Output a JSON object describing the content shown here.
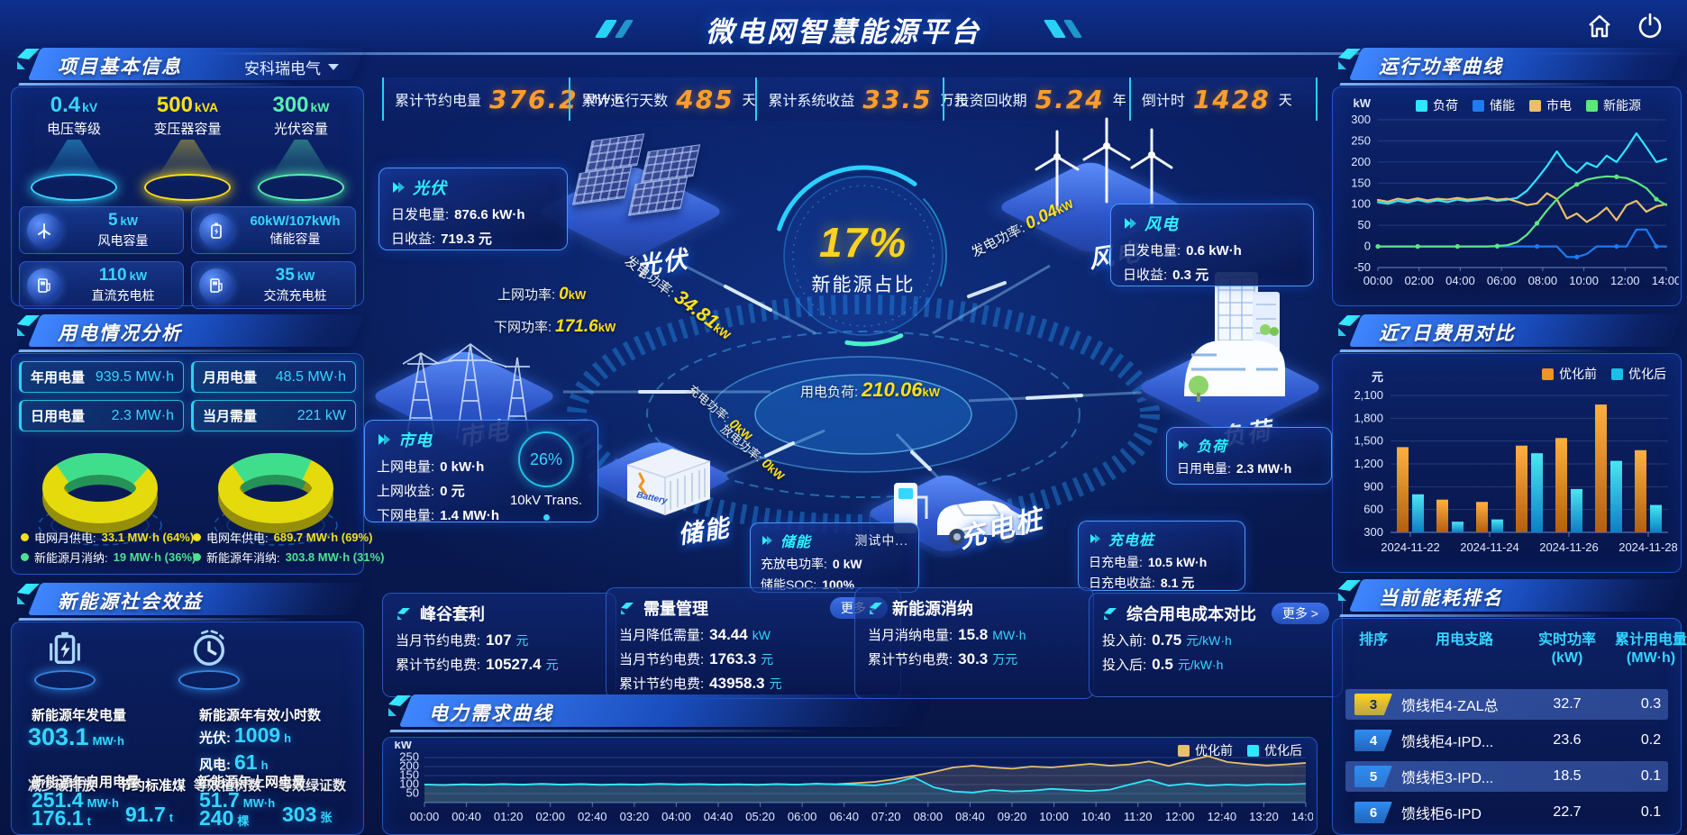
{
  "header": {
    "title": "微电网智慧能源平台"
  },
  "kpi": [
    {
      "label": "累计节约电量",
      "value": "376.2",
      "unit": "MW·h"
    },
    {
      "label": "累计运行天数",
      "value": "485",
      "unit": "天"
    },
    {
      "label": "累计系统收益",
      "value": "33.5",
      "unit": "万元"
    },
    {
      "label": "投资回收期",
      "value": "5.24",
      "unit": "年"
    },
    {
      "label": "倒计时",
      "value": "1428",
      "unit": "天"
    }
  ],
  "project": {
    "title": "项目基本信息",
    "company": "安科瑞电气",
    "spotlights": [
      {
        "value": "0.4",
        "unit": "kV",
        "label": "电压等级",
        "color": "#35d6ff"
      },
      {
        "value": "500",
        "unit": "kVA",
        "label": "变压器容量",
        "color": "#ffe01a"
      },
      {
        "value": "300",
        "unit": "kW",
        "label": "光伏容量",
        "color": "#57f0b0"
      }
    ],
    "cards": [
      {
        "value": "5",
        "unit": "kW",
        "label": "风电容量",
        "icon": "wind-turbine-icon"
      },
      {
        "value": "60kW/107kWh",
        "unit": "",
        "label": "储能容量",
        "icon": "battery-icon"
      },
      {
        "value": "110",
        "unit": "kW",
        "label": "直流充电桩",
        "icon": "dc-charger-icon"
      },
      {
        "value": "35",
        "unit": "kW",
        "label": "交流充电桩",
        "icon": "ac-charger-icon"
      }
    ]
  },
  "usage": {
    "title": "用电情况分析",
    "stats": [
      {
        "label": "年用电量",
        "value": "939.5",
        "unit": "MW·h"
      },
      {
        "label": "月用电量",
        "value": "48.5",
        "unit": "MW·h"
      },
      {
        "label": "日用电量",
        "value": "2.3",
        "unit": "MW·h"
      },
      {
        "label": "当月需量",
        "value": "221",
        "unit": "kW"
      }
    ],
    "donut_month": {
      "grid_pct": 64,
      "legend": [
        {
          "label": "电网月供电:",
          "value": "33.1 MW·h (64%)",
          "color": "#f0e01e"
        },
        {
          "label": "新能源月消纳:",
          "value": "19 MW·h (36%)",
          "color": "#4be38f"
        }
      ]
    },
    "donut_year": {
      "grid_pct": 69,
      "legend": [
        {
          "label": "电网年供电:",
          "value": "689.7 MW·h (69%)",
          "color": "#f0e01e"
        },
        {
          "label": "新能源年消纳:",
          "value": "303.8 MW·h (31%)",
          "color": "#4be38f"
        }
      ]
    }
  },
  "benefit": {
    "title": "新能源社会效益",
    "gen": {
      "label": "新能源年发电量",
      "value": "303.1",
      "unit": "MW·h"
    },
    "hours": {
      "label": "新能源年有效小时数",
      "pv_label": "光伏:",
      "pv": "1009",
      "pv_unit": "h",
      "wind_label": "风电:",
      "wind": "61",
      "wind_unit": "h"
    },
    "self_use": {
      "label": "新能源年自用电量",
      "value": "251.4",
      "unit": "MW·h"
    },
    "co2": {
      "label": "减少碳排放",
      "value": "176.1",
      "unit": "t"
    },
    "coal": {
      "label": "节约标准煤",
      "value": "91.7",
      "unit": "t"
    },
    "to_grid": {
      "label": "新能源年上网电量",
      "value": "51.7",
      "unit": "MW·h"
    },
    "trees": {
      "label": "等效植树数",
      "value": "240",
      "unit": "棵"
    },
    "certs": {
      "label": "等效绿证数",
      "value": "303",
      "unit": "张"
    }
  },
  "scene": {
    "gauge": {
      "value": "17%",
      "label": "新能源占比"
    },
    "transformer": {
      "pct": "26%",
      "label": "10kV Trans."
    },
    "nodes": {
      "solar": "光伏",
      "grid": "市电",
      "wind": "风电",
      "load": "负荷",
      "storage": "储能",
      "charger": "充电桩"
    },
    "solar_box": {
      "title": "光伏",
      "rows": [
        {
          "label": "日发电量:",
          "value": "876.6 kW·h"
        },
        {
          "label": "日收益:",
          "value": "719.3 元"
        }
      ]
    },
    "wind_box": {
      "title": "风电",
      "rows": [
        {
          "label": "日发电量:",
          "value": "0.6 kW·h"
        },
        {
          "label": "日收益:",
          "value": "0.3 元"
        }
      ]
    },
    "grid_box": {
      "title": "市电",
      "rows": [
        {
          "label": "上网电量:",
          "value": "0 kW·h"
        },
        {
          "label": "上网收益:",
          "value": "0 元"
        },
        {
          "label": "下网电量:",
          "value": "1.4 MW·h"
        }
      ]
    },
    "storage_box": {
      "title": "储能",
      "marquee": "测试中...",
      "rows": [
        {
          "label": "充放电功率:",
          "value": "0 kW"
        },
        {
          "label": "储能SOC:",
          "value": "100%"
        }
      ]
    },
    "load_box": {
      "title": "负荷",
      "rows": [
        {
          "label": "日用电量:",
          "value": "2.3 MW·h"
        }
      ]
    },
    "charger_box": {
      "title": "充电桩",
      "rows": [
        {
          "label": "日充电量:",
          "value": "10.5 kW·h"
        },
        {
          "label": "日充电收益:",
          "value": "8.1 元"
        }
      ]
    },
    "flows": {
      "pv_gen": {
        "label": "发电功率:",
        "value": "34.81",
        "unit": "kW"
      },
      "to_grid": {
        "label": "上网功率:",
        "value": "0",
        "unit": "kW"
      },
      "from_grid": {
        "label": "下网功率:",
        "value": "171.6",
        "unit": "kW"
      },
      "wind_gen": {
        "label": "发电功率:",
        "value": "0.04",
        "unit": "kW"
      },
      "load": {
        "label": "用电负荷:",
        "value": "210.06",
        "unit": "kW"
      },
      "charge": {
        "label": "充电功率:",
        "value": "0",
        "unit": "kW"
      },
      "discharge": {
        "label": "放电功率:",
        "value": "0",
        "unit": "kW"
      }
    }
  },
  "mid_cards": [
    {
      "title": "峰谷套利",
      "more": null,
      "rows": [
        {
          "label": "当月节约电费:",
          "value": "107",
          "unit": "元"
        },
        {
          "label": "累计节约电费:",
          "value": "10527.4",
          "unit": "元"
        }
      ]
    },
    {
      "title": "需量管理",
      "more": "更多 >",
      "rows": [
        {
          "label": "当月降低需量:",
          "value": "34.44",
          "unit": "kW"
        },
        {
          "label": "当月节约电费:",
          "value": "1763.3",
          "unit": "元"
        },
        {
          "label": "累计节约电费:",
          "value": "43958.3",
          "unit": "元"
        }
      ]
    },
    {
      "title": "新能源消纳",
      "more": null,
      "rows": [
        {
          "label": "当月消纳电量:",
          "value": "15.8",
          "unit": "MW·h"
        },
        {
          "label": "累计节约电费:",
          "value": "30.3",
          "unit": "万元"
        }
      ]
    },
    {
      "title": "综合用电成本对比",
      "more": "更多 >",
      "rows": [
        {
          "label": "投入前:",
          "value": "0.75",
          "unit": "元/kW·h"
        },
        {
          "label": "投入后:",
          "value": "0.5",
          "unit": "元/kW·h"
        }
      ]
    }
  ],
  "demand_panel": {
    "title": "电力需求曲线"
  },
  "right1": {
    "title": "运行功率曲线"
  },
  "right2": {
    "title": "近7日费用对比"
  },
  "ranking": {
    "title": "当前能耗排名",
    "columns": [
      {
        "t": "排序",
        "u": ""
      },
      {
        "t": "用电支路",
        "u": ""
      },
      {
        "t": "实时功率",
        "u": "(kW)"
      },
      {
        "t": "累计用电量",
        "u": "(MW·h)"
      }
    ],
    "rows": [
      {
        "rank": "3",
        "branch": "馈线柜4-ZAL总",
        "power": "32.7",
        "energy": "0.3",
        "highlight": true,
        "badge": "#ffd21e"
      },
      {
        "rank": "4",
        "branch": "馈线柜4-IPD...",
        "power": "23.6",
        "energy": "0.2",
        "highlight": false,
        "badge": "#2e8df2"
      },
      {
        "rank": "5",
        "branch": "馈线柜3-IPD...",
        "power": "18.5",
        "energy": "0.1",
        "highlight": true,
        "badge": "#2e8df2"
      },
      {
        "rank": "6",
        "branch": "馈线柜6-IPD",
        "power": "22.7",
        "energy": "0.1",
        "highlight": false,
        "badge": "#2e8df2"
      }
    ]
  },
  "chart_data": [
    {
      "id": "power-curve",
      "type": "line",
      "title": "运行功率曲线",
      "ylabel": "kW",
      "ylim": [
        -50,
        300
      ],
      "yticks": [
        300,
        250,
        200,
        150,
        100,
        50,
        0,
        -50
      ],
      "xticks": [
        "00:00",
        "02:00",
        "04:00",
        "06:00",
        "08:00",
        "10:00",
        "12:00",
        "14:00"
      ],
      "legend_position": "top",
      "grid": true,
      "series": [
        {
          "name": "负荷",
          "color": "#2ee6ff",
          "values": [
            105,
            101,
            108,
            104,
            110,
            105,
            109,
            105,
            111,
            107,
            110,
            113,
            108,
            111,
            115,
            132,
            160,
            190,
            225,
            192,
            175,
            198,
            188,
            215,
            200,
            232,
            268,
            235,
            200,
            207
          ]
        },
        {
          "name": "储能",
          "color": "#1f7bf2",
          "values": [
            0,
            0,
            0,
            0,
            0,
            0,
            0,
            0,
            0,
            0,
            0,
            0,
            0,
            0,
            0,
            0,
            0,
            0,
            0,
            -25,
            -25,
            -18,
            0,
            0,
            0,
            0,
            40,
            40,
            0,
            0
          ]
        },
        {
          "name": "市电",
          "color": "#e8c06a",
          "values": [
            110,
            106,
            113,
            109,
            114,
            109,
            113,
            111,
            115,
            111,
            113,
            116,
            111,
            113,
            106,
            98,
            102,
            126,
            112,
            66,
            78,
            58,
            72,
            92,
            62,
            98,
            108,
            82,
            95,
            100
          ]
        },
        {
          "name": "新能源",
          "color": "#5ce87f",
          "values": [
            0,
            0,
            0,
            0,
            0,
            0,
            0,
            0,
            0,
            0,
            0,
            0,
            1,
            3,
            10,
            28,
            55,
            85,
            112,
            132,
            147,
            158,
            163,
            166,
            165,
            162,
            152,
            138,
            112,
            98
          ]
        }
      ]
    },
    {
      "id": "cost-compare",
      "type": "bar",
      "title": "近7日费用对比",
      "ylabel": "元",
      "ylim": [
        300,
        2100
      ],
      "yticks": [
        2100,
        1800,
        1500,
        1200,
        900,
        600,
        300
      ],
      "categories": [
        "2024-11-22",
        "2024-11-23",
        "2024-11-24",
        "2024-11-25",
        "2024-11-26",
        "2024-11-27",
        "2024-11-28"
      ],
      "xtick_labels_shown": [
        "2024-11-22",
        "2024-11-24",
        "2024-11-26",
        "2024-11-28"
      ],
      "legend_position": "top-right",
      "grid": true,
      "series": [
        {
          "name": "优化前",
          "color": "#f09423",
          "values": [
            1420,
            730,
            700,
            1440,
            1540,
            1980,
            1380
          ]
        },
        {
          "name": "优化后",
          "color": "#19c0e6",
          "values": [
            800,
            440,
            470,
            1340,
            870,
            1240,
            660
          ]
        }
      ]
    },
    {
      "id": "demand-curve",
      "type": "line",
      "title": "电力需求曲线",
      "ylabel": "kW",
      "ylim": [
        0,
        300
      ],
      "yticks": [
        250,
        200,
        150,
        100,
        50
      ],
      "xticks": [
        "00:00",
        "00:40",
        "01:20",
        "02:00",
        "02:40",
        "03:20",
        "04:00",
        "04:40",
        "05:20",
        "06:00",
        "06:40",
        "07:20",
        "08:00",
        "08:40",
        "09:20",
        "10:00",
        "10:40",
        "11:20",
        "12:00",
        "12:40",
        "13:20",
        "14:00"
      ],
      "legend_position": "top-right",
      "grid": true,
      "series": [
        {
          "name": "优化前",
          "color": "#e8c06a",
          "values": [
            100,
            98,
            102,
            99,
            103,
            100,
            104,
            100,
            103,
            99,
            102,
            100,
            104,
            101,
            103,
            100,
            102,
            99,
            103,
            100,
            105,
            102,
            108,
            115,
            130,
            148,
            170,
            195,
            205,
            195,
            188,
            200,
            195,
            205,
            215,
            205,
            212,
            228,
            204,
            232,
            258,
            225,
            214,
            206,
            212,
            220
          ]
        },
        {
          "name": "优化后",
          "color": "#2ee6ff",
          "values": [
            100,
            97,
            101,
            98,
            102,
            99,
            103,
            99,
            102,
            98,
            101,
            99,
            103,
            100,
            102,
            99,
            101,
            98,
            102,
            99,
            104,
            101,
            99,
            95,
            110,
            140,
            85,
            62,
            56,
            70,
            62,
            66,
            76,
            70,
            64,
            72,
            100,
            126,
            94,
            106,
            94,
            100,
            96,
            102,
            100,
            105
          ]
        }
      ]
    }
  ]
}
